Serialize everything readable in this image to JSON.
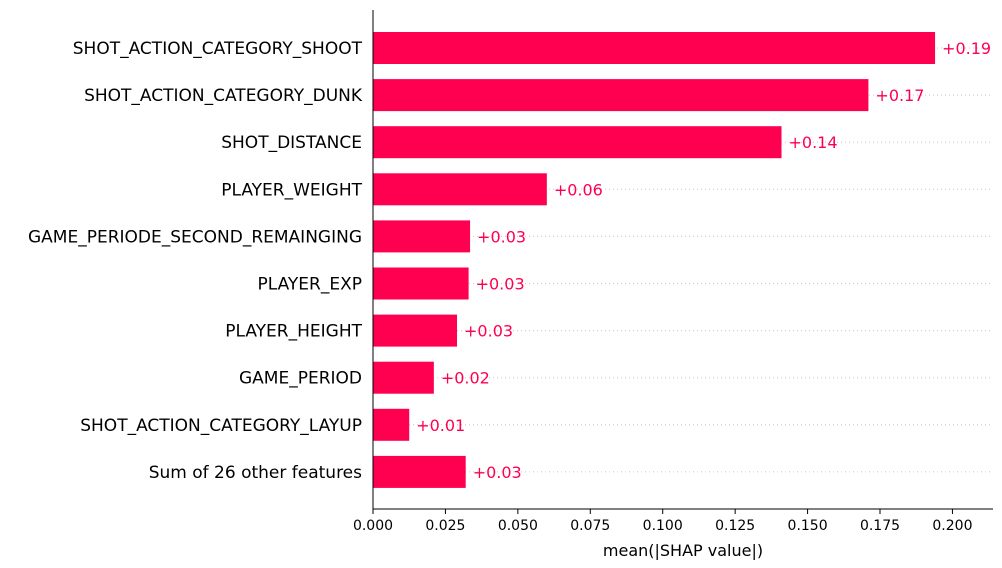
{
  "chart_data": {
    "type": "bar",
    "orientation": "horizontal",
    "title": "",
    "xlabel": "mean(|SHAP value|)",
    "ylabel": "",
    "xlim": [
      0,
      0.214
    ],
    "xticks": [
      "0.000",
      "0.025",
      "0.050",
      "0.075",
      "0.100",
      "0.125",
      "0.150",
      "0.175",
      "0.200"
    ],
    "grid": "dotted row guides",
    "legend": "none",
    "bar_color": "#ff0051",
    "bars": [
      {
        "label": "SHOT_ACTION_CATEGORY_SHOOT",
        "value": 0.194,
        "value_label": "+0.19"
      },
      {
        "label": "SHOT_ACTION_CATEGORY_DUNK",
        "value": 0.171,
        "value_label": "+0.17"
      },
      {
        "label": "SHOT_DISTANCE",
        "value": 0.141,
        "value_label": "+0.14"
      },
      {
        "label": "PLAYER_WEIGHT",
        "value": 0.06,
        "value_label": "+0.06"
      },
      {
        "label": "GAME_PERIODE_SECOND_REMAINGING",
        "value": 0.0335,
        "value_label": "+0.03"
      },
      {
        "label": "PLAYER_EXP",
        "value": 0.033,
        "value_label": "+0.03"
      },
      {
        "label": "PLAYER_HEIGHT",
        "value": 0.029,
        "value_label": "+0.03"
      },
      {
        "label": "GAME_PERIOD",
        "value": 0.021,
        "value_label": "+0.02"
      },
      {
        "label": "SHOT_ACTION_CATEGORY_LAYUP",
        "value": 0.0125,
        "value_label": "+0.01"
      },
      {
        "label": "Sum of 26 other features",
        "value": 0.032,
        "value_label": "+0.03"
      }
    ]
  }
}
